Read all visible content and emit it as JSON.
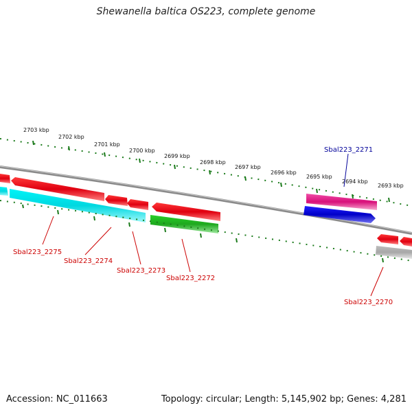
{
  "title": "Shewanella baltica OS223, complete genome",
  "footer": {
    "accession": "Accession: NC_011663",
    "summary": "Topology: circular; Length: 5,145,902 bp; Genes: 4,281"
  },
  "colors": {
    "backbone": "#8a8a8a",
    "ruler_ticks": "#1a7a1a",
    "gene_label_red": "#cc0000",
    "gene_label_blue": "#000099",
    "gene_red": "#e8001a",
    "gene_cyan": "#00e0e8",
    "gene_green": "#22bb22",
    "gene_magenta": "#e0208a",
    "gene_blue": "#0a0ad0",
    "gene_gray": "#c8c8c8"
  },
  "outer_ruler_labels": [
    "2703 kbp",
    "2702 kbp",
    "2701 kbp",
    "2700 kbp",
    "2699 kbp",
    "2698 kbp",
    "2697 kbp",
    "2696 kbp",
    "2695 kbp",
    "2694 kbp",
    "2693 kbp"
  ],
  "gene_labels": [
    {
      "text": "Sbal223_2275",
      "color": "red"
    },
    {
      "text": "Sbal223_2274",
      "color": "red"
    },
    {
      "text": "Sbal223_2273",
      "color": "red"
    },
    {
      "text": "Sbal223_2272",
      "color": "red"
    },
    {
      "text": "Sbal223_2271",
      "color": "blue"
    },
    {
      "text": "Sbal223_2270",
      "color": "red"
    }
  ]
}
